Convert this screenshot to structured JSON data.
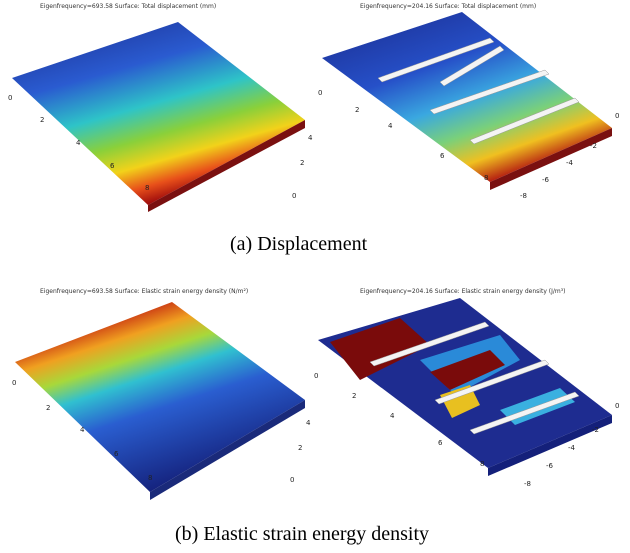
{
  "panels": [
    {
      "title": "Eigenfrequency=693.58  Surface: Total displacement (mm)",
      "left_ticks": [
        "0",
        "2",
        "4",
        "6",
        "8"
      ],
      "right_ticks": [
        "0",
        "2",
        "4"
      ]
    },
    {
      "title": "Eigenfrequency=204.16  Surface: Total displacement (mm)",
      "left_ticks": [
        "0",
        "2",
        "4",
        "6",
        "8"
      ],
      "right_ticks": [
        "0",
        "-2",
        "-4",
        "-6",
        "-8"
      ]
    },
    {
      "title": "Eigenfrequency=693.58  Surface: Elastic strain energy density (N/m²)",
      "left_ticks": [
        "0",
        "2",
        "4",
        "6",
        "8"
      ],
      "right_ticks": [
        "0",
        "2",
        "4"
      ]
    },
    {
      "title": "Eigenfrequency=204.16  Surface: Elastic strain energy density (J/m³)",
      "left_ticks": [
        "0",
        "2",
        "4",
        "6",
        "8"
      ],
      "right_ticks": [
        "0",
        "-2",
        "-4",
        "-6",
        "-8"
      ]
    }
  ],
  "captions": [
    "(a)  Displacement",
    "(b)  Elastic strain energy density"
  ]
}
